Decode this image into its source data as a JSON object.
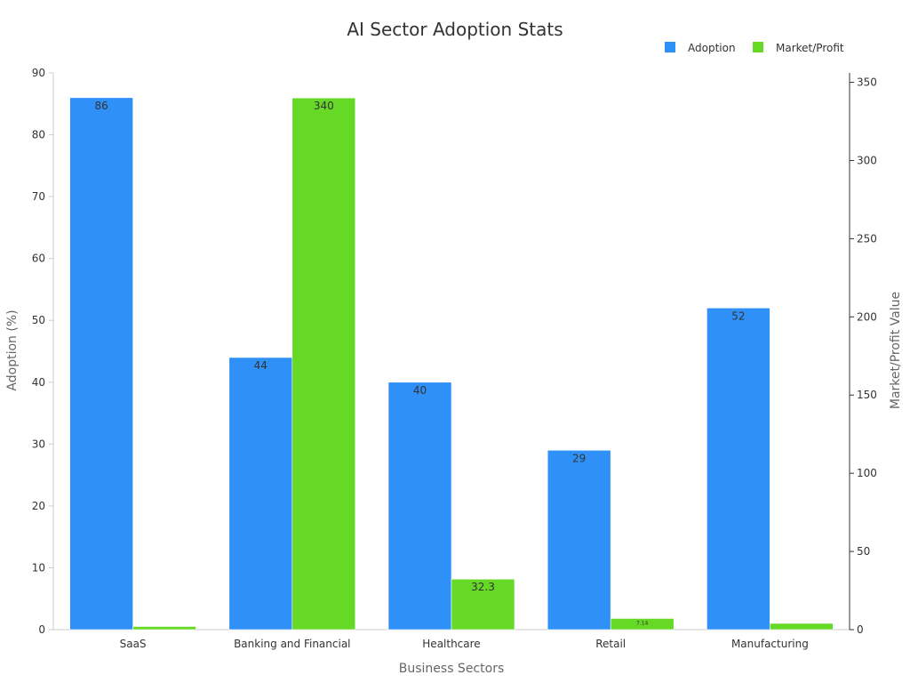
{
  "chart_data": {
    "type": "bar",
    "title": "AI Sector Adoption Stats",
    "xlabel": "Business Sectors",
    "ylabel": "Adoption (%)",
    "y2label": "Market/Profit Value",
    "categories": [
      "SaaS",
      "Banking and Financial",
      "Healthcare",
      "Retail",
      "Manufacturing"
    ],
    "ylim": [
      0,
      90
    ],
    "y2lim": [
      0,
      356
    ],
    "yticks": [
      0,
      10,
      20,
      30,
      40,
      50,
      60,
      70,
      80,
      90
    ],
    "y2ticks": [
      0,
      50,
      100,
      150,
      200,
      250,
      300,
      350
    ],
    "legend_position": "top-right",
    "grid": false,
    "series": [
      {
        "name": "Adoption",
        "axis": "left",
        "color": "#2f91f7",
        "values": [
          86,
          44,
          40,
          29,
          52
        ],
        "labels": [
          "86",
          "44",
          "40",
          "29",
          "52"
        ]
      },
      {
        "name": "Market/Profit",
        "axis": "right",
        "color": "#66d926",
        "values": [
          2,
          340,
          32.3,
          7.14,
          4
        ],
        "labels": [
          "",
          "340",
          "32.3",
          "7.14",
          ""
        ]
      }
    ]
  }
}
